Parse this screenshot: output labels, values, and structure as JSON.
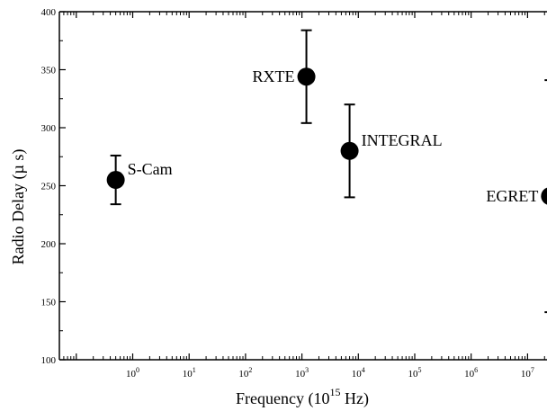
{
  "chart_data": {
    "type": "scatter",
    "xlabel": "Frequency (10^15 Hz)",
    "xlabel_parts": {
      "prefix": "Frequency (10",
      "sup": "15",
      "suffix": " Hz)"
    },
    "ylabel": "Radio Delay (µ s)",
    "xscale": "log",
    "xlim_exp": [
      -1.3,
      7.6
    ],
    "ylim": [
      100,
      400
    ],
    "yticks": [
      100,
      150,
      200,
      250,
      300,
      350,
      400
    ],
    "xtick_exponents": [
      0,
      1,
      2,
      3,
      4,
      5,
      6,
      7
    ],
    "grid": false,
    "legend": "none",
    "points": [
      {
        "label": "S-Cam",
        "x": 0.5,
        "y": 255,
        "yerr": 21,
        "label_side": "right"
      },
      {
        "label": "RXTE",
        "x": 1200,
        "y": 344,
        "yerr": 40,
        "label_side": "left"
      },
      {
        "label": "INTEGRAL",
        "x": 7000,
        "y": 280,
        "yerr": 40,
        "label_side": "right"
      },
      {
        "label": "EGRET",
        "x": 25000000,
        "y": 241,
        "yerr": 100,
        "label_side": "left"
      }
    ]
  }
}
